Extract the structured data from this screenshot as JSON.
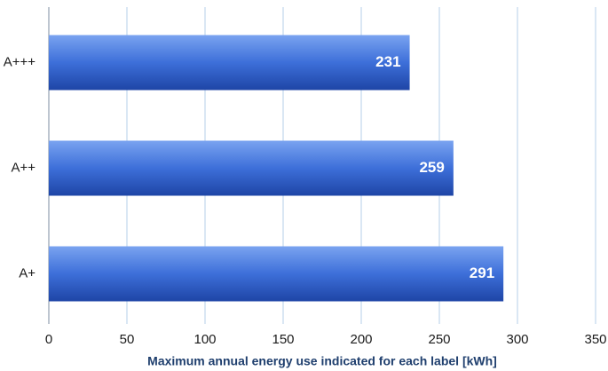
{
  "chart_data": {
    "type": "bar",
    "orientation": "horizontal",
    "x_label": "Maximum annual energy use indicated for each label [kWh]",
    "categories": [
      "A+++",
      "A++",
      "A+"
    ],
    "values": [
      231,
      259,
      291
    ],
    "color": "#3d6fd9",
    "xlim": [
      0,
      350
    ],
    "xticks": [
      0,
      50,
      100,
      150,
      200,
      250,
      300,
      350
    ],
    "grid": true
  }
}
